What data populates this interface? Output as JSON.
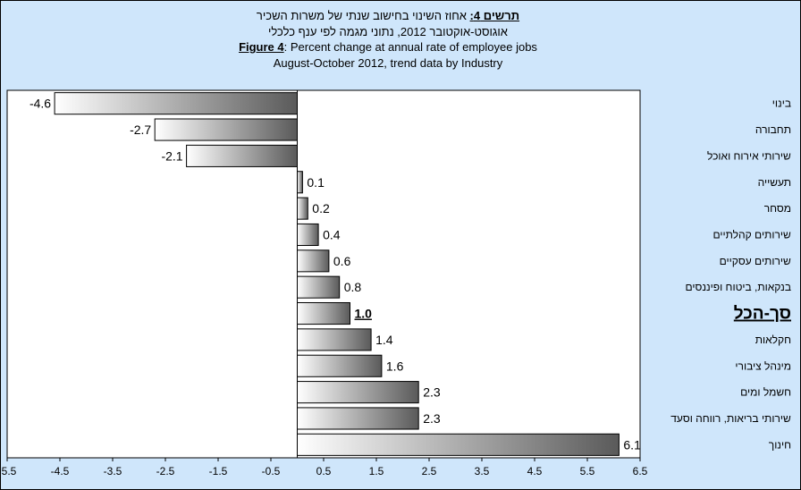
{
  "title": {
    "hebrew_prefix": "תרשים 4:",
    "hebrew_line1": "אחוז השינוי בחישוב שנתי של משרות השכיר",
    "hebrew_line2": "אוגוסט-אוקטובר 2012, נתוני מגמה לפי ענף כלכלי",
    "english_prefix": "Figure 4",
    "english_line1": ": Percent change at annual rate of employee jobs",
    "english_line2": "August-October 2012, trend data by Industry"
  },
  "chart_data": {
    "type": "bar",
    "orientation": "horizontal",
    "categories": [
      "בינוי",
      "תחבורה",
      "שירותי אירוח ואוכל",
      "תעשייה",
      "מסחר",
      "שירותים קהלתיים",
      "שירותים עסקיים",
      "בנקאות, ביטוח ופיננסים",
      "סך-הכל",
      "חקלאות",
      "מינהל ציבורי",
      "חשמל ומים",
      "שירותי בריאות, רווחה וסעד",
      "חינוך"
    ],
    "values": [
      -4.6,
      -2.7,
      -2.1,
      0.1,
      0.2,
      0.4,
      0.6,
      0.8,
      1.0,
      1.4,
      1.6,
      2.3,
      2.3,
      6.1
    ],
    "value_labels": [
      "-4.6",
      "-2.7",
      "-2.1",
      "0.1",
      "0.2",
      "0.4",
      "0.6",
      "0.8",
      "1.0",
      "1.4",
      "1.6",
      "2.3",
      "2.3",
      "6.1"
    ],
    "highlight_category": "סך-הכל",
    "x_ticks": [
      "-5.5",
      "-4.5",
      "-3.5",
      "-2.5",
      "-1.5",
      "-0.5",
      "0.5",
      "1.5",
      "2.5",
      "3.5",
      "4.5",
      "5.5",
      "6.5"
    ],
    "xlim": [
      -5.5,
      6.5
    ],
    "grid": false,
    "legend": "none"
  },
  "colors": {
    "background": "#cfe6fb",
    "plot_area": "#ffffff",
    "bar_light": "#ffffff",
    "bar_dark": "#5a5a5a"
  }
}
